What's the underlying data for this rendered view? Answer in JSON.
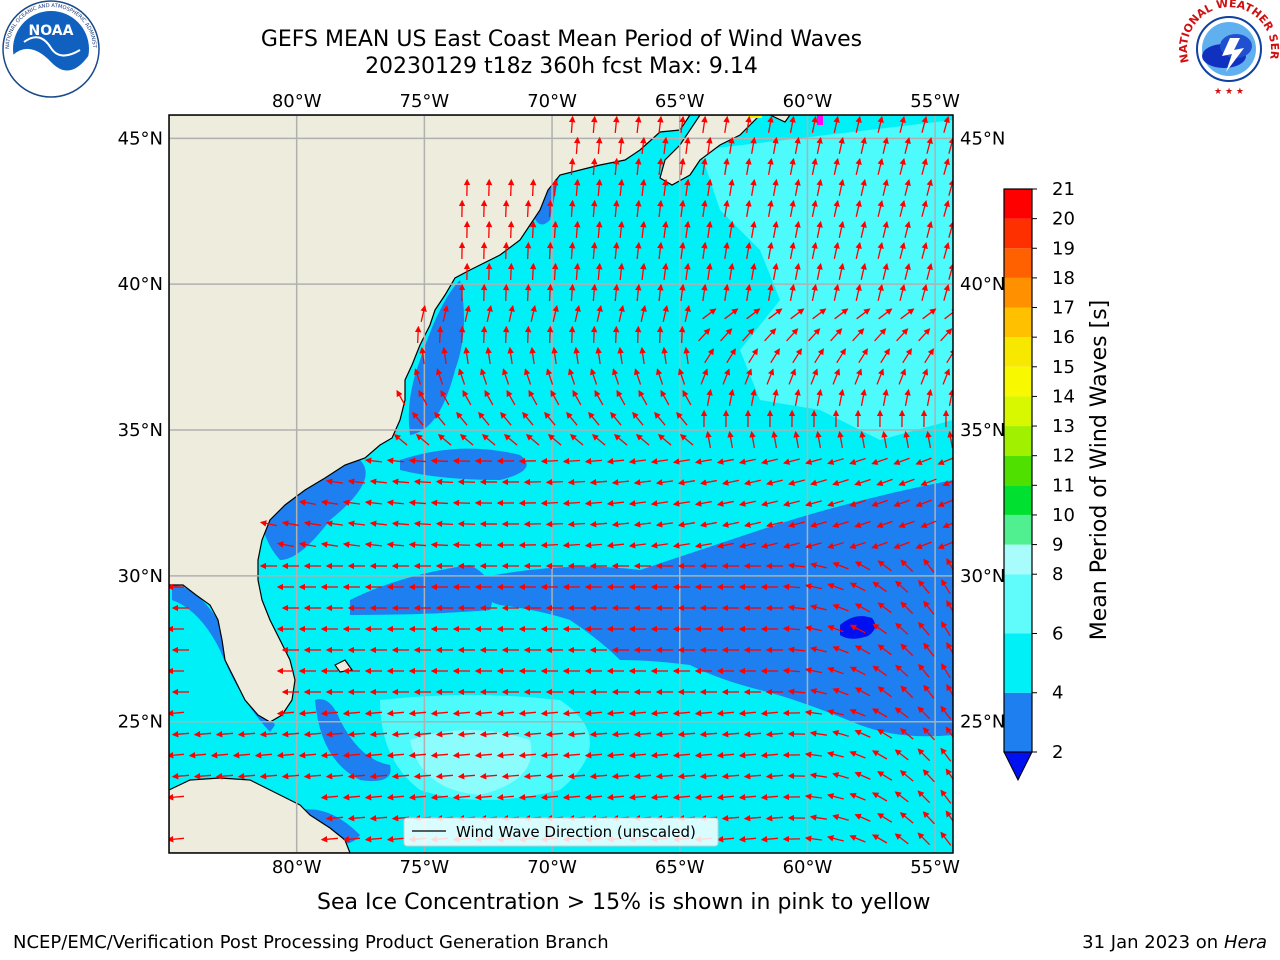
{
  "header": {
    "title_line1": "GEFS MEAN US East Coast Mean Period of Wind Waves",
    "title_line2": "20230129 t18z 360h fcst   Max: 9.14"
  },
  "logos": {
    "left": {
      "name": "noaa-logo",
      "text": "NOAA",
      "ring_text": "NATIONAL OCEANIC AND ATMOSPHERIC ADMINISTRATION · U.S. DEPARTMENT OF COMMERCE"
    },
    "right": {
      "name": "nws-logo",
      "ring_text": "NATIONAL WEATHER SERVICE"
    }
  },
  "map": {
    "lon_labels": [
      "80°W",
      "75°W",
      "70°W",
      "65°W",
      "60°W",
      "55°W"
    ],
    "lat_labels": [
      "45°N",
      "40°N",
      "35°N",
      "30°N",
      "25°N"
    ],
    "lon_values": [
      -80,
      -75,
      -70,
      -65,
      -60,
      -55
    ],
    "lat_values": [
      45,
      40,
      35,
      30,
      25
    ],
    "extent": {
      "lon_min": -85,
      "lon_max": -54.3,
      "lat_min": 20.5,
      "lat_max": 45.8
    },
    "colors": {
      "land": "#eeecdc",
      "band_2_4": "#1e7ff0",
      "band_4_6": "#00f0f8",
      "band_6_8": "#60fcfc",
      "below_2": "#0010f0",
      "arrows": "#ff0000",
      "grid": "#b0b0b0"
    },
    "legend_label": "Wind Wave Direction (unscaled)"
  },
  "colorbar": {
    "title": "Mean Period of Wind Waves [s]",
    "ticks": [
      "2",
      "4",
      "6",
      "8",
      "9",
      "10",
      "11",
      "12",
      "13",
      "14",
      "15",
      "16",
      "17",
      "18",
      "19",
      "20",
      "21"
    ],
    "bins": [
      {
        "from": 2,
        "to": 4,
        "color": "#1e7ff0"
      },
      {
        "from": 4,
        "to": 6,
        "color": "#00f0f8"
      },
      {
        "from": 6,
        "to": 8,
        "color": "#60fcfc"
      },
      {
        "from": 8,
        "to": 9,
        "color": "#a8fcfc"
      },
      {
        "from": 9,
        "to": 10,
        "color": "#50f090"
      },
      {
        "from": 10,
        "to": 11,
        "color": "#00e030"
      },
      {
        "from": 11,
        "to": 12,
        "color": "#50e000"
      },
      {
        "from": 12,
        "to": 13,
        "color": "#a0f000"
      },
      {
        "from": 13,
        "to": 14,
        "color": "#d8f800"
      },
      {
        "from": 14,
        "to": 15,
        "color": "#f8f800"
      },
      {
        "from": 15,
        "to": 16,
        "color": "#f8e800"
      },
      {
        "from": 16,
        "to": 17,
        "color": "#ffc000"
      },
      {
        "from": 17,
        "to": 18,
        "color": "#ff9000"
      },
      {
        "from": 18,
        "to": 19,
        "color": "#ff6000"
      },
      {
        "from": 19,
        "to": 20,
        "color": "#ff3000"
      },
      {
        "from": 20,
        "to": 21,
        "color": "#ff0000"
      }
    ],
    "under_color": "#0010f0"
  },
  "notes": {
    "sea_ice": "Sea Ice Concentration > 15% is shown in pink to yellow",
    "producer": "NCEP/EMC/Verification Post Processing Product Generation Branch",
    "date_prefix": "31 Jan 2023 on ",
    "machine": "Hera"
  }
}
